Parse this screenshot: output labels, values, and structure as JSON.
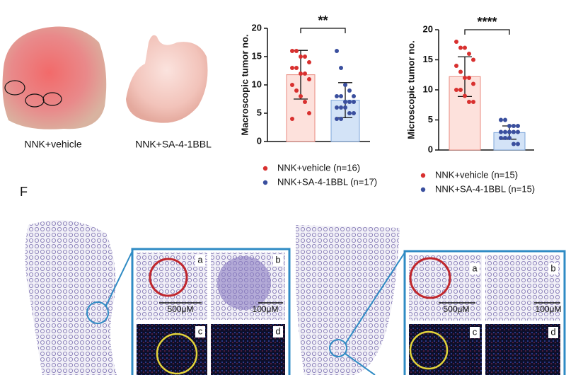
{
  "photos": [
    "NNK+vehicle",
    "NNK+SA-4-1BBL"
  ],
  "panel_label": "F",
  "insets": [
    {
      "letters": [
        "a",
        "b",
        "c",
        "d"
      ],
      "scale_bars": [
        "500μM",
        "100μM"
      ]
    },
    {
      "letters": [
        "a",
        "b",
        "c",
        "d"
      ],
      "scale_bars": [
        "500μM",
        "100μM"
      ]
    }
  ],
  "chart_data": [
    {
      "type": "bar",
      "y_label": "Macroscopic tumor no.",
      "significance": "**",
      "ylim": [
        0,
        20
      ],
      "yticks": [
        0,
        5,
        10,
        15,
        20
      ],
      "series": [
        {
          "name": "NNK+vehicle (n=16)",
          "color": "#d8302f",
          "fill": "#fde1dc",
          "edge": "#e98b80",
          "values": [
            11.8
          ],
          "error": [
            4.3
          ],
          "points": [
            16,
            16,
            15,
            15,
            14,
            13,
            13,
            12,
            12,
            11,
            10,
            9,
            8,
            7,
            5,
            4
          ]
        },
        {
          "name": "NNK+SA-4-1BBL (n=17)",
          "color": "#3a4f9e",
          "fill": "#d3e3f7",
          "edge": "#7ea6da",
          "values": [
            7.3
          ],
          "error": [
            3.1
          ],
          "points": [
            16,
            13,
            10,
            9,
            8,
            8,
            8,
            7,
            7,
            7,
            6,
            6,
            6,
            5,
            5,
            4,
            4
          ]
        }
      ]
    },
    {
      "type": "bar",
      "y_label": "Microscopic tumor no.",
      "significance": "****",
      "ylim": [
        0,
        20
      ],
      "yticks": [
        0,
        5,
        10,
        15,
        20
      ],
      "series": [
        {
          "name": "NNK+vehicle (n=15)",
          "color": "#d8302f",
          "fill": "#fde1dc",
          "edge": "#e98b80",
          "values": [
            12.2
          ],
          "error": [
            3.3
          ],
          "points": [
            18,
            17,
            17,
            16,
            15,
            14,
            13,
            12,
            12,
            11,
            10,
            10,
            9,
            8,
            8
          ]
        },
        {
          "name": "NNK+SA-4-1BBL (n=15)",
          "color": "#3a4f9e",
          "fill": "#d3e3f7",
          "edge": "#7ea6da",
          "values": [
            2.9
          ],
          "error": [
            1.1
          ],
          "points": [
            5,
            5,
            4,
            4,
            4,
            3,
            3,
            3,
            3,
            3,
            2,
            2,
            2,
            1,
            1
          ]
        }
      ]
    }
  ]
}
